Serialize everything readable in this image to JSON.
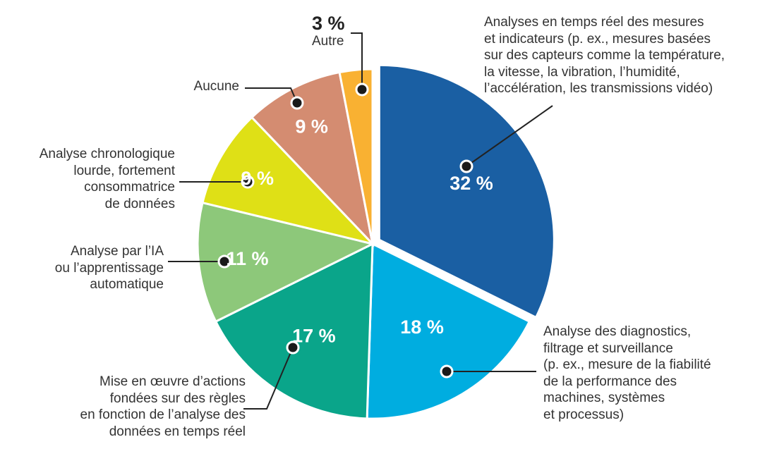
{
  "chart_data": {
    "type": "pie",
    "slices": [
      {
        "value": 32,
        "pct_label": "32 %",
        "label": "Analyses en temps réel des mesures\net indicateurs (p. ex., mesures basées\nsur des capteurs comme la température,\nla vitesse, la vibration, l’humidité,\nl’accélération, les transmissions vidéo)",
        "color": "#1a5fa3",
        "exploded": true
      },
      {
        "value": 18,
        "pct_label": "18 %",
        "label": "Analyse des diagnostics,\nfiltrage et surveillance\n(p. ex., mesure de la fiabilité\nde la performance des\nmachines, systèmes\net processus)",
        "color": "#00ade0",
        "exploded": false
      },
      {
        "value": 17,
        "pct_label": "17 %",
        "label": "Mise en œuvre d’actions\nfondées sur des règles\nen fonction de l’analyse des\ndonnées en temps réel",
        "color": "#0aa58a",
        "exploded": false
      },
      {
        "value": 11,
        "pct_label": "11 %",
        "label": "Analyse par l’IA\nou l’apprentissage\nautomatique",
        "color": "#8dc87a",
        "exploded": false
      },
      {
        "value": 9,
        "pct_label": "9 %",
        "label": "Analyse chronologique\nlourde, fortement\nconsommatrice\nde données",
        "color": "#dfe016",
        "exploded": false
      },
      {
        "value": 9,
        "pct_label": "9 %",
        "label": "Aucune",
        "color": "#d48c71",
        "exploded": false
      },
      {
        "value": 3,
        "pct_label": "3 %",
        "label": "Autre",
        "color": "#f9b132",
        "exploded": false
      }
    ]
  }
}
